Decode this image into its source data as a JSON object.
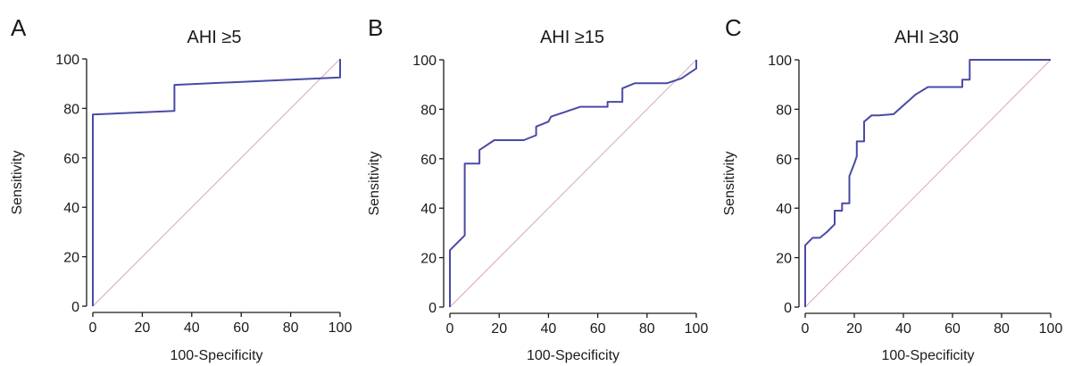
{
  "colors": {
    "roc": "#4a4aa6",
    "diagonal": "#d8a8b8",
    "axis": "#1a1a1a"
  },
  "chart_data": [
    {
      "type": "line",
      "panel_label": "A",
      "title": "AHI ≥5",
      "xlabel": "100-Specificity",
      "ylabel": "Sensitivity",
      "xlim": [
        0,
        100
      ],
      "ylim": [
        0,
        100
      ],
      "xticks": [
        "0",
        "20",
        "40",
        "60",
        "80",
        "100"
      ],
      "yticks": [
        "0",
        "20",
        "40",
        "60",
        "80",
        "100"
      ],
      "grid": false,
      "reference_line": [
        [
          0,
          0
        ],
        [
          100,
          100
        ]
      ],
      "x": [
        0,
        0,
        33,
        33,
        100,
        100
      ],
      "y": [
        0,
        77.5,
        79,
        89.5,
        92.5,
        100
      ]
    },
    {
      "type": "line",
      "panel_label": "B",
      "title": "AHI ≥15",
      "xlabel": "100-Specificity",
      "ylabel": "Sensitivity",
      "xlim": [
        0,
        100
      ],
      "ylim": [
        0,
        100
      ],
      "xticks": [
        "0",
        "20",
        "40",
        "60",
        "80",
        "100"
      ],
      "yticks": [
        "0",
        "20",
        "40",
        "60",
        "80",
        "100"
      ],
      "grid": false,
      "reference_line": [
        [
          0,
          0
        ],
        [
          100,
          100
        ]
      ],
      "x": [
        0,
        0,
        6,
        6,
        12,
        12,
        18,
        30,
        35,
        35,
        40,
        41,
        53,
        64,
        64,
        70,
        70,
        75,
        88,
        94,
        100,
        100
      ],
      "y": [
        0,
        23,
        29,
        58,
        58,
        63.5,
        67.5,
        67.5,
        69.5,
        73,
        75,
        77,
        81,
        81,
        83,
        83,
        88.5,
        90.5,
        90.5,
        92.5,
        96.5,
        100
      ]
    },
    {
      "type": "line",
      "panel_label": "C",
      "title": "AHI ≥30",
      "xlabel": "100-Specificity",
      "ylabel": "Sensitivity",
      "xlim": [
        0,
        100
      ],
      "ylim": [
        0,
        100
      ],
      "xticks": [
        "0",
        "20",
        "40",
        "60",
        "80",
        "100"
      ],
      "yticks": [
        "0",
        "20",
        "40",
        "60",
        "80",
        "100"
      ],
      "grid": false,
      "reference_line": [
        [
          0,
          0
        ],
        [
          100,
          100
        ]
      ],
      "x": [
        0,
        0,
        3,
        6,
        9,
        12,
        12,
        15,
        15,
        18,
        18,
        20,
        21,
        21,
        24,
        24,
        27,
        30,
        36,
        45,
        50,
        62,
        64,
        64,
        67,
        67,
        100
      ],
      "y": [
        0,
        25,
        28,
        28,
        30.5,
        33.5,
        39,
        39,
        42,
        42,
        53,
        58,
        61,
        67,
        67,
        75,
        77.5,
        77.5,
        78,
        86,
        89,
        89,
        89,
        92,
        92,
        100,
        100
      ]
    }
  ]
}
